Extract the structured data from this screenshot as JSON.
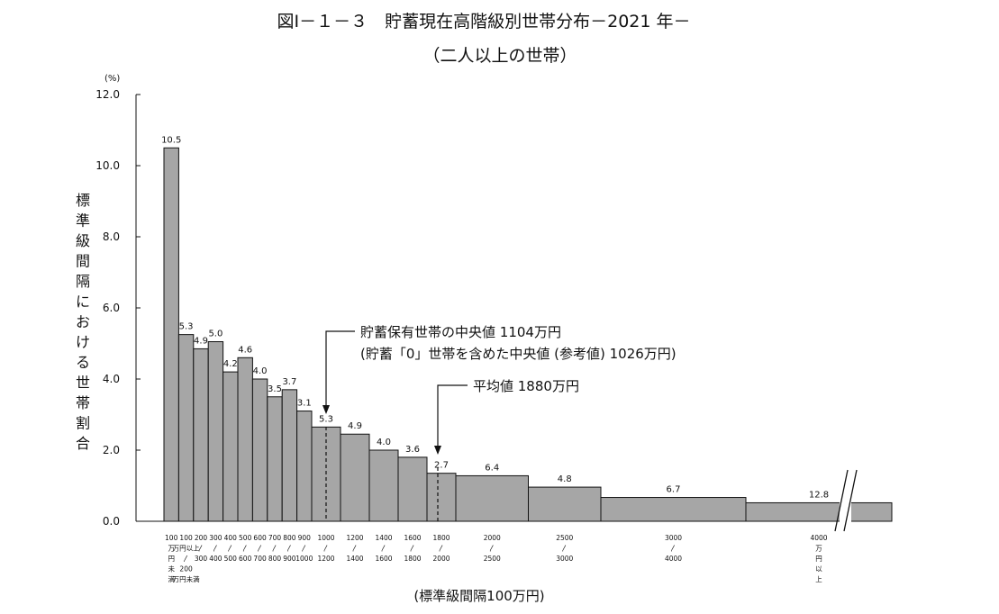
{
  "chart_data": {
    "type": "bar",
    "title": "図Ⅰ－１－３　貯蓄現在高階級別世帯分布－2021 年－",
    "subtitle": "（二人以上の世帯）",
    "ylabel": "標準級間隔における世帯割合",
    "yunit": "(%)",
    "xlabel": "(標準級間隔100万円)",
    "ylim": [
      0,
      12
    ],
    "yticks": [
      "0.0",
      "2.0",
      "4.0",
      "6.0",
      "8.0",
      "10.0",
      "12.0"
    ],
    "bars": [
      {
        "start": 0,
        "end": 100,
        "value": 10.5,
        "label": "10.5",
        "display_height": 10.5
      },
      {
        "start": 100,
        "end": 200,
        "value": 5.3,
        "label": "5.3",
        "display_height": 5.25
      },
      {
        "start": 200,
        "end": 300,
        "value": 4.9,
        "label": "4.9",
        "display_height": 4.85
      },
      {
        "start": 300,
        "end": 400,
        "value": 5.0,
        "label": "5.0",
        "display_height": 5.05
      },
      {
        "start": 400,
        "end": 500,
        "value": 4.2,
        "label": "4.2",
        "display_height": 4.2
      },
      {
        "start": 500,
        "end": 600,
        "value": 4.6,
        "label": "4.6",
        "display_height": 4.6
      },
      {
        "start": 600,
        "end": 700,
        "value": 4.0,
        "label": "4.0",
        "display_height": 4.0
      },
      {
        "start": 700,
        "end": 800,
        "value": 3.5,
        "label": "3.5",
        "display_height": 3.5
      },
      {
        "start": 800,
        "end": 900,
        "value": 3.7,
        "label": "3.7",
        "display_height": 3.7
      },
      {
        "start": 900,
        "end": 1000,
        "value": 3.1,
        "label": "3.1",
        "display_height": 3.1
      },
      {
        "start": 1000,
        "end": 1200,
        "value": 5.3,
        "label": "5.3",
        "display_height": 2.65
      },
      {
        "start": 1200,
        "end": 1400,
        "value": 4.9,
        "label": "4.9",
        "display_height": 2.45
      },
      {
        "start": 1400,
        "end": 1600,
        "value": 4.0,
        "label": "4.0",
        "display_height": 2.0
      },
      {
        "start": 1600,
        "end": 1800,
        "value": 3.6,
        "label": "3.6",
        "display_height": 1.8
      },
      {
        "start": 1800,
        "end": 2000,
        "value": 2.7,
        "label": "2.7",
        "display_height": 1.35
      },
      {
        "start": 2000,
        "end": 2500,
        "value": 6.4,
        "label": "6.4",
        "display_height": 1.28
      },
      {
        "start": 2500,
        "end": 3000,
        "value": 4.8,
        "label": "4.8",
        "display_height": 0.96
      },
      {
        "start": 3000,
        "end": 4000,
        "value": 6.7,
        "label": "6.7",
        "display_height": 0.67
      },
      {
        "start": 4000,
        "end": 5000,
        "value": 12.8,
        "label": "12.8",
        "display_height": 0.52,
        "open_ended": true
      }
    ],
    "x_category_labels": [
      {
        "at": 50,
        "lines": [
          "100",
          "万",
          "円",
          "未",
          "満"
        ]
      },
      {
        "at": 150,
        "lines": [
          "100",
          "万円以上",
          "〳",
          "200",
          "万円未満"
        ]
      },
      {
        "at": 250,
        "lines": [
          "200",
          "〳",
          "300"
        ]
      },
      {
        "at": 350,
        "lines": [
          "300",
          "〳",
          "400"
        ]
      },
      {
        "at": 450,
        "lines": [
          "400",
          "〳",
          "500"
        ]
      },
      {
        "at": 550,
        "lines": [
          "500",
          "〳",
          "600"
        ]
      },
      {
        "at": 650,
        "lines": [
          "600",
          "〳",
          "700"
        ]
      },
      {
        "at": 750,
        "lines": [
          "700",
          "〳",
          "800"
        ]
      },
      {
        "at": 850,
        "lines": [
          "800",
          "〳",
          "900"
        ]
      },
      {
        "at": 950,
        "lines": [
          "900",
          "〳",
          "1000"
        ]
      },
      {
        "at": 1100,
        "lines": [
          "1000",
          "〳",
          "1200"
        ]
      },
      {
        "at": 1300,
        "lines": [
          "1200",
          "〳",
          "1400"
        ]
      },
      {
        "at": 1500,
        "lines": [
          "1400",
          "〳",
          "1600"
        ]
      },
      {
        "at": 1700,
        "lines": [
          "1600",
          "〳",
          "1800"
        ]
      },
      {
        "at": 1900,
        "lines": [
          "1800",
          "〳",
          "2000"
        ]
      },
      {
        "at": 2250,
        "lines": [
          "2000",
          "〳",
          "2500"
        ]
      },
      {
        "at": 2750,
        "lines": [
          "2500",
          "〳",
          "3000"
        ]
      },
      {
        "at": 3500,
        "lines": [
          "3000",
          "〳",
          "4000"
        ]
      },
      {
        "at": 4500,
        "lines": [
          "4000",
          "万",
          "円",
          "以",
          "上"
        ]
      }
    ],
    "annotations": [
      {
        "name": "median",
        "x_value": 1104,
        "lines": [
          "貯蓄保有世帯の中央値 1104万円",
          "(貯蓄「0」世帯を含めた中央値 (参考値) 1026万円)"
        ]
      },
      {
        "name": "mean",
        "x_value": 1880,
        "lines": [
          "平均値 1880万円"
        ]
      }
    ],
    "axis_break": true,
    "grid": false,
    "colors": {
      "bar_fill": "#a6a6a6",
      "bar_stroke": "#111111"
    }
  }
}
